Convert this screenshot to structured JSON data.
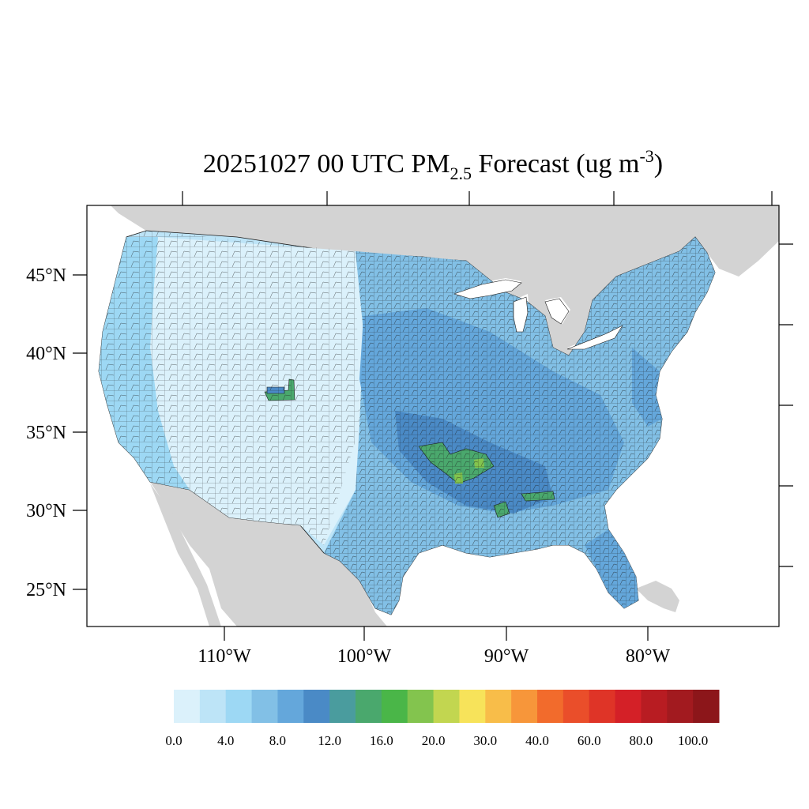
{
  "map": {
    "title_main": "20251027 00 UTC PM",
    "title_sub": "2.5",
    "title_tail": " Forecast (ug m",
    "title_sup": "-3",
    "title_close": ")",
    "latitude_labels": [
      "45°N",
      "40°N",
      "35°N",
      "30°N",
      "25°N"
    ],
    "longitude_labels": [
      "110°W",
      "100°W",
      "90°W",
      "80°W"
    ],
    "colors": {
      "land_outside": "#d3d3d3",
      "water": "#ffffff",
      "county_border": "#1a1a1a"
    }
  },
  "colorbar": {
    "labels": [
      "0.0",
      "4.0",
      "8.0",
      "12.0",
      "16.0",
      "20.0",
      "30.0",
      "40.0",
      "60.0",
      "80.0",
      "100.0"
    ],
    "colors": [
      "#dbf1fb",
      "#bde4f7",
      "#9dd8f4",
      "#82c0e6",
      "#64a7db",
      "#4a8ac6",
      "#4a9c9e",
      "#4aa86d",
      "#4ab648",
      "#83c44e",
      "#c2d650",
      "#f7e35a",
      "#f8bd49",
      "#f7963a",
      "#f26b2c",
      "#ea4e2a",
      "#df3427",
      "#d42027",
      "#b81c22",
      "#a21a1f",
      "#8c161a"
    ]
  }
}
